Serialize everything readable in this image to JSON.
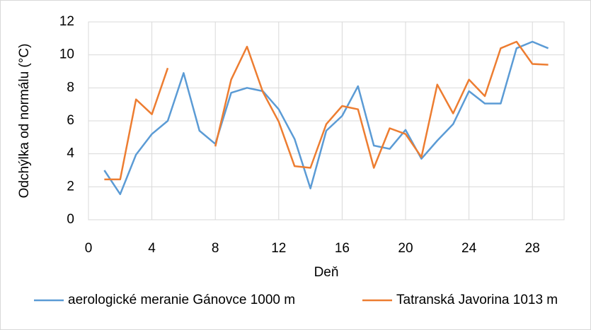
{
  "chart_data": {
    "type": "line",
    "xlabel": "Deň",
    "ylabel": "Odchýlka od normálu (°C)",
    "x": [
      1,
      2,
      3,
      4,
      5,
      6,
      7,
      8,
      9,
      10,
      11,
      12,
      13,
      14,
      15,
      16,
      17,
      18,
      19,
      20,
      21,
      22,
      23,
      24,
      25,
      26,
      27,
      28,
      29
    ],
    "series": [
      {
        "name": "aerologické meranie Gánovce 1000 m",
        "color": "#5b9bd5",
        "values": [
          3.0,
          1.55,
          3.95,
          5.2,
          6.0,
          8.9,
          5.4,
          4.6,
          7.7,
          8.0,
          7.8,
          6.7,
          4.9,
          1.9,
          5.4,
          6.3,
          8.1,
          4.5,
          4.3,
          5.45,
          3.7,
          4.8,
          5.8,
          7.8,
          7.05,
          7.05,
          10.4,
          10.8,
          10.4
        ]
      },
      {
        "name": "Tatranská Javorina 1013 m",
        "color": "#ed7d31",
        "values": [
          2.45,
          2.45,
          7.3,
          6.4,
          9.2,
          null,
          null,
          4.45,
          8.5,
          10.5,
          7.75,
          5.95,
          3.25,
          3.15,
          5.8,
          6.9,
          6.7,
          3.15,
          5.55,
          5.2,
          3.8,
          8.2,
          6.45,
          8.5,
          7.5,
          10.4,
          10.8,
          9.45,
          9.4
        ]
      }
    ],
    "xlim": [
      0,
      30
    ],
    "xticks": [
      0,
      4,
      8,
      12,
      16,
      20,
      24,
      28
    ],
    "ylim": [
      0,
      12
    ],
    "yticks": [
      0,
      2,
      4,
      6,
      8,
      10,
      12
    ],
    "grid": true,
    "legend": "bottom"
  }
}
